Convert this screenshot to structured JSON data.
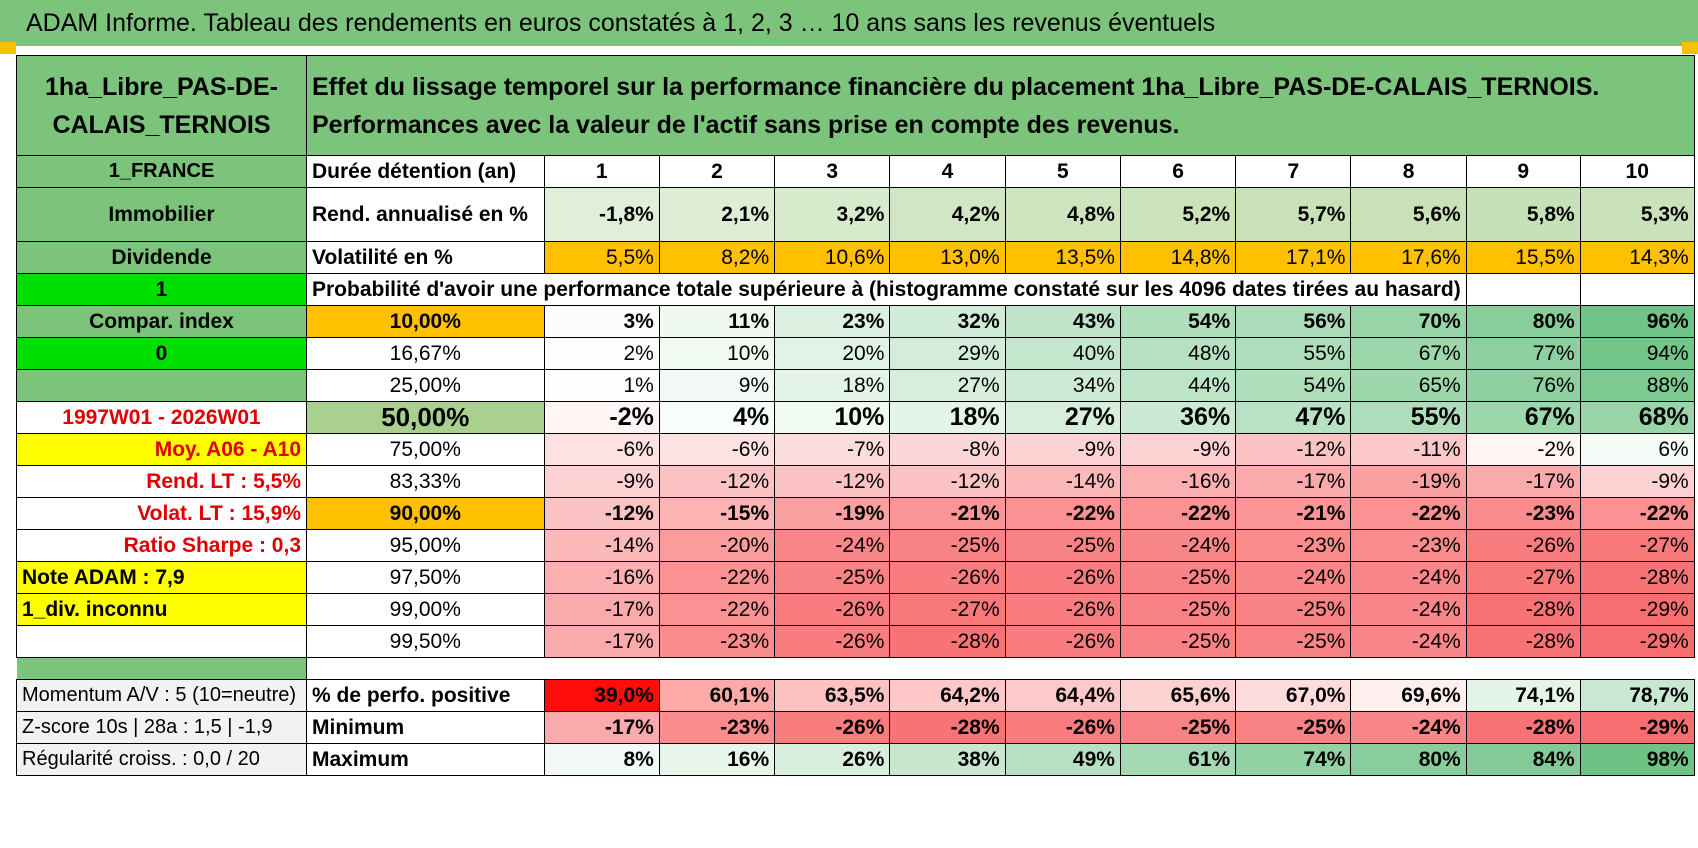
{
  "banner": "ADAM Informe. Tableau des rendements en euros constatés à 1, 2, 3 … 10 ans sans les revenus éventuels",
  "title": "1ha_Libre_PAS-DE-CALAIS_TERNOIS",
  "description": "Effet du lissage temporel sur la performance financière du placement 1ha_Libre_PAS-DE-CALAIS_TERNOIS. Performances avec la valeur de l'actif sans prise en compte des revenus.",
  "left": {
    "country": "1_FRANCE",
    "asset": "Immobilier",
    "dividend": "Dividende",
    "one": "1",
    "compar": "Compar. index",
    "zero": "0",
    "period": "1997W01 - 2026W01",
    "moy": "Moy. A06 - A10",
    "rend": "Rend. LT :    5,5%",
    "volat": "Volat. LT :    15,9%",
    "sharpe": "Ratio Sharpe :     0,3",
    "note": "Note ADAM : 7,9",
    "div": "1_div. inconnu",
    "momentum": "Momentum A/V : 5 (10=neutre)",
    "zscore": "Z-score 10s | 28a : 1,5 | -1,9",
    "regul": "Régularité croiss. : 0,0 / 20"
  },
  "duration_label": "Durée détention (an)",
  "years": [
    "1",
    "2",
    "3",
    "4",
    "5",
    "6",
    "7",
    "8",
    "9",
    "10"
  ],
  "rend_label": "Rend. annualisé en %",
  "rend": [
    "-1,8%",
    "2,1%",
    "3,2%",
    "4,2%",
    "4,8%",
    "5,2%",
    "5,7%",
    "5,6%",
    "5,8%",
    "5,3%"
  ],
  "vol_label": "Volatilité en %",
  "vol": [
    "5,5%",
    "8,2%",
    "10,6%",
    "13,0%",
    "13,5%",
    "14,8%",
    "17,1%",
    "17,6%",
    "15,5%",
    "14,3%"
  ],
  "prob_header": "Probabilité d'avoir une performance totale supérieure à (histogramme constaté sur les 4096 dates tirées au hasard)",
  "prob_rows": [
    {
      "p": "10,00%",
      "v": [
        "3%",
        "11%",
        "23%",
        "32%",
        "43%",
        "54%",
        "56%",
        "70%",
        "80%",
        "96%"
      ]
    },
    {
      "p": "16,67%",
      "v": [
        "2%",
        "10%",
        "20%",
        "29%",
        "40%",
        "48%",
        "55%",
        "67%",
        "77%",
        "94%"
      ]
    },
    {
      "p": "25,00%",
      "v": [
        "1%",
        "9%",
        "18%",
        "27%",
        "34%",
        "44%",
        "54%",
        "65%",
        "76%",
        "88%"
      ]
    },
    {
      "p": "50,00%",
      "v": [
        "-2%",
        "4%",
        "10%",
        "18%",
        "27%",
        "36%",
        "47%",
        "55%",
        "67%",
        "68%"
      ]
    },
    {
      "p": "75,00%",
      "v": [
        "-6%",
        "-6%",
        "-7%",
        "-8%",
        "-9%",
        "-9%",
        "-12%",
        "-11%",
        "-2%",
        "6%"
      ]
    },
    {
      "p": "83,33%",
      "v": [
        "-9%",
        "-12%",
        "-12%",
        "-12%",
        "-14%",
        "-16%",
        "-17%",
        "-19%",
        "-17%",
        "-9%"
      ]
    },
    {
      "p": "90,00%",
      "v": [
        "-12%",
        "-15%",
        "-19%",
        "-21%",
        "-22%",
        "-22%",
        "-21%",
        "-22%",
        "-23%",
        "-22%"
      ]
    },
    {
      "p": "95,00%",
      "v": [
        "-14%",
        "-20%",
        "-24%",
        "-25%",
        "-25%",
        "-24%",
        "-23%",
        "-23%",
        "-26%",
        "-27%"
      ]
    },
    {
      "p": "97,50%",
      "v": [
        "-16%",
        "-22%",
        "-25%",
        "-26%",
        "-26%",
        "-25%",
        "-24%",
        "-24%",
        "-27%",
        "-28%"
      ]
    },
    {
      "p": "99,00%",
      "v": [
        "-17%",
        "-22%",
        "-26%",
        "-27%",
        "-26%",
        "-25%",
        "-25%",
        "-24%",
        "-28%",
        "-29%"
      ]
    },
    {
      "p": "99,50%",
      "v": [
        "-17%",
        "-23%",
        "-26%",
        "-28%",
        "-26%",
        "-25%",
        "-25%",
        "-24%",
        "-28%",
        "-29%"
      ]
    }
  ],
  "pos_label": "% de perfo. positive",
  "pos": [
    "39,0%",
    "60,1%",
    "63,5%",
    "64,2%",
    "64,4%",
    "65,6%",
    "67,0%",
    "69,6%",
    "74,1%",
    "78,7%"
  ],
  "min_label": "Minimum",
  "min": [
    "-17%",
    "-23%",
    "-26%",
    "-28%",
    "-26%",
    "-25%",
    "-25%",
    "-24%",
    "-28%",
    "-29%"
  ],
  "max_label": "Maximum",
  "max": [
    "8%",
    "16%",
    "26%",
    "38%",
    "49%",
    "61%",
    "74%",
    "80%",
    "84%",
    "98%"
  ]
}
